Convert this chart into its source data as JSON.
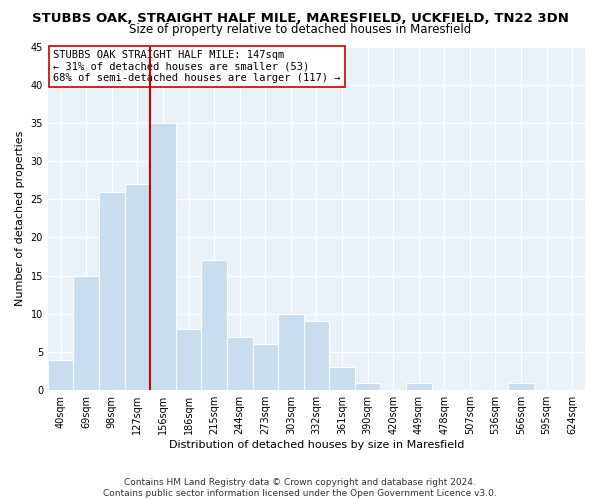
{
  "title": "STUBBS OAK, STRAIGHT HALF MILE, MARESFIELD, UCKFIELD, TN22 3DN",
  "subtitle": "Size of property relative to detached houses in Maresfield",
  "xlabel": "Distribution of detached houses by size in Maresfield",
  "ylabel": "Number of detached properties",
  "bin_labels": [
    "40sqm",
    "69sqm",
    "98sqm",
    "127sqm",
    "156sqm",
    "186sqm",
    "215sqm",
    "244sqm",
    "273sqm",
    "303sqm",
    "332sqm",
    "361sqm",
    "390sqm",
    "420sqm",
    "449sqm",
    "478sqm",
    "507sqm",
    "536sqm",
    "566sqm",
    "595sqm",
    "624sqm"
  ],
  "bar_values": [
    4,
    15,
    26,
    27,
    35,
    8,
    17,
    7,
    6,
    10,
    9,
    3,
    1,
    0,
    1,
    0,
    0,
    0,
    1,
    0,
    0
  ],
  "bar_color": "#c8ddef",
  "bar_edge_color": "#ffffff",
  "vline_color": "#cc0000",
  "ylim": [
    0,
    45
  ],
  "yticks": [
    0,
    5,
    10,
    15,
    20,
    25,
    30,
    35,
    40,
    45
  ],
  "annotation_title": "STUBBS OAK STRAIGHT HALF MILE: 147sqm",
  "annotation_line1": "← 31% of detached houses are smaller (53)",
  "annotation_line2": "68% of semi-detached houses are larger (117) →",
  "annotation_box_color": "#ffffff",
  "annotation_box_edge": "#cc0000",
  "footer1": "Contains HM Land Registry data © Crown copyright and database right 2024.",
  "footer2": "Contains public sector information licensed under the Open Government Licence v3.0.",
  "background_color": "#ffffff",
  "plot_bg_color": "#e8f0f8",
  "grid_color": "#ffffff",
  "title_fontsize": 9.5,
  "subtitle_fontsize": 8.5,
  "axis_label_fontsize": 8,
  "tick_fontsize": 7,
  "annotation_fontsize": 7.5,
  "footer_fontsize": 6.5
}
